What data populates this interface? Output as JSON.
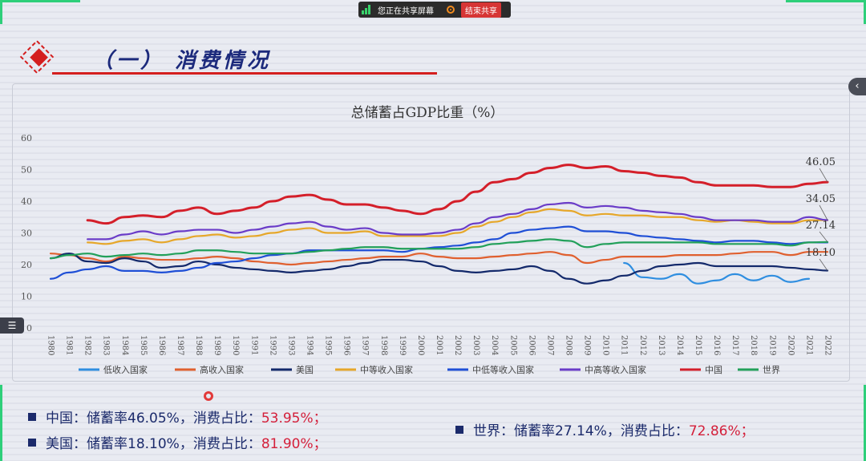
{
  "share_bar": {
    "status_text": "您正在共享屏幕",
    "end_label": "结束共享"
  },
  "header": {
    "section_title": "（一） 消费情况"
  },
  "chart_data": {
    "type": "line",
    "title": "总储蓄占GDP比重（%）",
    "xlabel": "",
    "ylabel": "",
    "ylim": [
      0,
      60
    ],
    "yticks": [
      0,
      10,
      20,
      30,
      40,
      50,
      60
    ],
    "grid": false,
    "legend_position": "bottom",
    "x": [
      1980,
      1981,
      1982,
      1983,
      1984,
      1985,
      1986,
      1987,
      1988,
      1989,
      1990,
      1991,
      1992,
      1993,
      1994,
      1995,
      1996,
      1997,
      1998,
      1999,
      2000,
      2001,
      2002,
      2003,
      2004,
      2005,
      2006,
      2007,
      2008,
      2009,
      2010,
      2011,
      2012,
      2013,
      2014,
      2015,
      2016,
      2017,
      2018,
      2019,
      2020,
      2021,
      2022
    ],
    "series": [
      {
        "name": "低收入国家",
        "color": "#2f8ee0",
        "values": [
          null,
          null,
          null,
          null,
          null,
          null,
          null,
          null,
          null,
          null,
          null,
          null,
          null,
          null,
          null,
          null,
          null,
          null,
          null,
          null,
          null,
          null,
          null,
          null,
          null,
          null,
          null,
          null,
          null,
          null,
          null,
          20.5,
          16.0,
          15.5,
          17.0,
          14.0,
          15.0,
          17.0,
          15.0,
          16.5,
          14.5,
          15.5,
          null
        ]
      },
      {
        "name": "高收入国家",
        "color": "#e0602f",
        "values": [
          23.5,
          23.0,
          22.0,
          21.0,
          22.5,
          22.0,
          21.5,
          21.5,
          22.0,
          22.5,
          22.0,
          21.0,
          20.5,
          20.0,
          20.5,
          21.0,
          21.5,
          22.0,
          22.5,
          22.5,
          23.5,
          22.5,
          22.0,
          22.0,
          22.5,
          23.0,
          23.5,
          24.0,
          23.0,
          20.5,
          21.5,
          22.5,
          22.5,
          22.5,
          23.0,
          23.0,
          23.0,
          23.5,
          24.0,
          24.0,
          23.0,
          24.0,
          24.0
        ]
      },
      {
        "name": "美国",
        "color": "#13296b",
        "values": [
          22.0,
          23.5,
          21.0,
          20.5,
          22.0,
          21.0,
          19.0,
          19.5,
          21.0,
          20.0,
          19.0,
          18.5,
          18.0,
          17.5,
          18.0,
          18.5,
          19.5,
          20.5,
          21.5,
          21.5,
          21.0,
          19.5,
          18.0,
          17.5,
          18.0,
          18.5,
          19.5,
          18.0,
          15.5,
          14.0,
          15.0,
          16.5,
          18.0,
          19.5,
          20.0,
          20.5,
          19.5,
          19.5,
          19.5,
          19.5,
          19.0,
          18.5,
          18.1
        ]
      },
      {
        "name": "中等收入国家",
        "color": "#e6a72a",
        "values": [
          null,
          null,
          27.0,
          26.5,
          27.5,
          28.0,
          27.0,
          28.0,
          29.0,
          29.5,
          28.5,
          29.0,
          30.0,
          31.0,
          31.5,
          30.0,
          30.0,
          30.5,
          29.0,
          29.0,
          29.0,
          29.0,
          30.0,
          32.0,
          33.5,
          35.0,
          36.5,
          37.5,
          37.0,
          35.5,
          36.0,
          35.5,
          35.5,
          35.0,
          35.0,
          34.0,
          33.5,
          34.0,
          33.5,
          33.0,
          33.0,
          34.0,
          34.0
        ]
      },
      {
        "name": "中低等收入国家",
        "color": "#1f4fd6",
        "values": [
          15.5,
          17.5,
          18.5,
          19.5,
          18.0,
          18.0,
          17.5,
          18.0,
          19.0,
          20.5,
          21.0,
          22.0,
          23.0,
          23.5,
          24.5,
          24.5,
          24.5,
          24.5,
          24.5,
          24.0,
          25.0,
          25.5,
          26.0,
          27.0,
          28.0,
          30.0,
          31.0,
          31.5,
          32.0,
          30.5,
          30.5,
          30.0,
          29.0,
          28.5,
          28.0,
          27.5,
          27.0,
          27.5,
          27.5,
          27.0,
          26.5,
          27.0,
          27.0
        ]
      },
      {
        "name": "中高等收入国家",
        "color": "#6a3cc8",
        "values": [
          null,
          null,
          28.0,
          28.0,
          29.5,
          30.5,
          29.5,
          30.5,
          31.0,
          31.0,
          30.0,
          31.0,
          32.0,
          33.0,
          33.5,
          32.0,
          31.0,
          31.5,
          30.0,
          29.5,
          29.5,
          30.0,
          31.0,
          33.0,
          35.0,
          36.0,
          37.5,
          39.0,
          39.5,
          38.0,
          38.5,
          38.0,
          37.0,
          36.5,
          36.0,
          35.0,
          34.0,
          34.0,
          34.0,
          33.5,
          33.5,
          35.0,
          34.05
        ]
      },
      {
        "name": "中国",
        "color": "#d41f2a",
        "values": [
          null,
          null,
          34.0,
          33.0,
          35.0,
          35.5,
          35.0,
          37.0,
          38.0,
          36.0,
          37.0,
          38.0,
          40.0,
          41.5,
          42.0,
          40.5,
          39.0,
          39.0,
          38.0,
          37.0,
          36.0,
          37.5,
          40.0,
          43.0,
          46.0,
          47.0,
          49.0,
          50.5,
          51.5,
          50.5,
          51.0,
          49.5,
          49.0,
          48.0,
          47.5,
          46.0,
          45.0,
          45.0,
          45.0,
          44.5,
          44.5,
          45.5,
          46.05
        ]
      },
      {
        "name": "世界",
        "color": "#22a05a",
        "values": [
          22.0,
          23.0,
          23.5,
          22.5,
          23.0,
          23.5,
          23.0,
          23.5,
          24.5,
          24.5,
          24.0,
          23.5,
          23.5,
          23.5,
          24.0,
          24.5,
          25.0,
          25.5,
          25.5,
          25.0,
          25.0,
          25.0,
          25.0,
          25.5,
          26.5,
          27.0,
          27.5,
          28.0,
          27.5,
          25.5,
          26.5,
          27.0,
          27.0,
          27.0,
          27.0,
          27.0,
          26.5,
          26.5,
          26.5,
          26.5,
          26.0,
          27.0,
          27.14
        ]
      }
    ],
    "annotations": [
      "46.05",
      "34.05",
      "27.14",
      "18.10"
    ]
  },
  "notes": {
    "china_prefix": "中国：储蓄率46.05%，消费占比：",
    "china_value": "53.95%；",
    "us_prefix": "美国：储蓄率18.10%，消费占比：",
    "us_value": "81.90%；",
    "world_prefix": "世界：储蓄率27.14%，消费占比：",
    "world_value": "72.86%；"
  },
  "icons": {
    "side_toggle": "chevron-left-icon",
    "menu": "menu-icon",
    "logo": "diamond-logo-icon"
  }
}
